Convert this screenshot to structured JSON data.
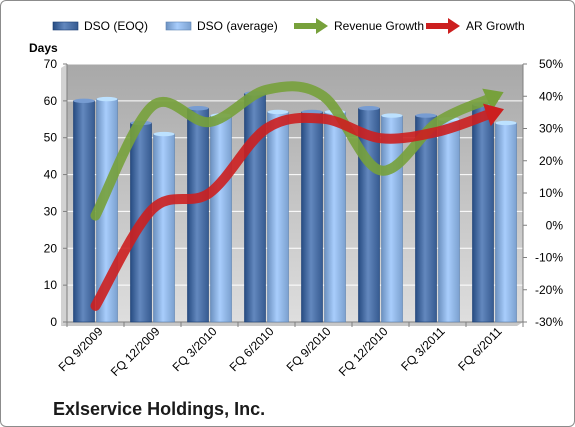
{
  "company_name": "Exlservice Holdings, Inc.",
  "chart_data": {
    "type": "bar",
    "categories": [
      "FQ 9/2009",
      "FQ 12/2009",
      "FQ 3/2010",
      "FQ 6/2010",
      "FQ 9/2010",
      "FQ 12/2010",
      "FQ 3/2011",
      "FQ 6/2011"
    ],
    "ylabel": "Days",
    "ylim": [
      0,
      70
    ],
    "yticks": [
      0,
      10,
      20,
      30,
      40,
      50,
      60,
      70
    ],
    "y2lim": [
      -30,
      50
    ],
    "y2ticks": [
      "-30%",
      "-20%",
      "-10%",
      "0%",
      "10%",
      "20%",
      "30%",
      "40%",
      "50%"
    ],
    "grid": true,
    "legend_position": "top",
    "series": [
      {
        "name": "DSO (EOQ)",
        "kind": "bar",
        "axis": "left",
        "color": "#4a6fa5",
        "values": [
          60,
          54,
          58,
          62,
          57,
          58,
          56,
          59
        ]
      },
      {
        "name": "DSO (average)",
        "kind": "bar",
        "axis": "left",
        "color": "#8fb4e3",
        "values": [
          60.5,
          51,
          56,
          57,
          57,
          56,
          55,
          54
        ]
      },
      {
        "name": "Revenue Growth",
        "kind": "line",
        "axis": "right",
        "unit": "percent",
        "color": "#77a13b",
        "values": [
          3,
          37,
          32,
          42,
          40,
          17,
          32,
          40
        ]
      },
      {
        "name": "AR Growth",
        "kind": "line",
        "axis": "right",
        "unit": "percent",
        "color": "#cc1f1f",
        "values": [
          -25,
          5,
          10,
          30,
          33,
          27,
          29,
          35
        ]
      }
    ]
  }
}
